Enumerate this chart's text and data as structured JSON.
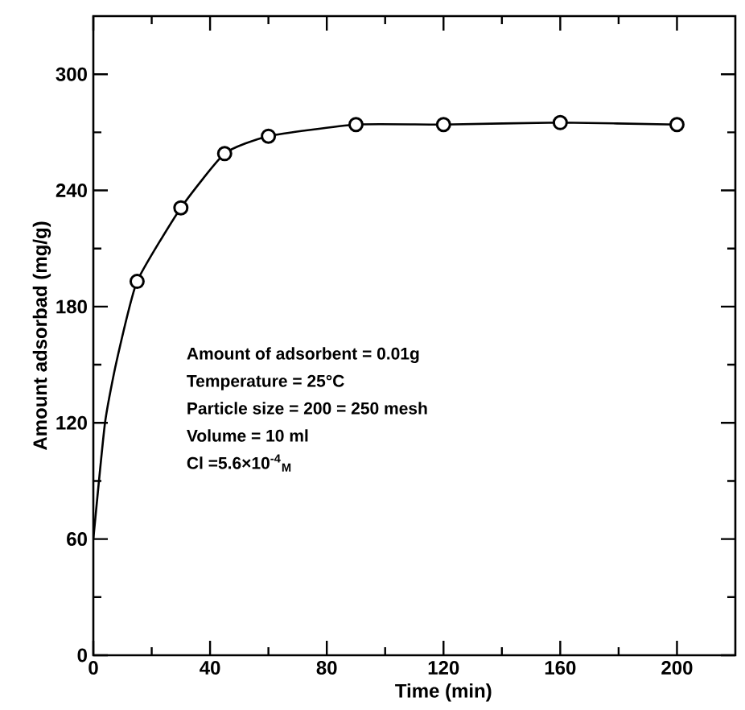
{
  "chart_data": {
    "type": "scatter",
    "xlabel": "Time (min)",
    "ylabel": "Amount adsorbad (mg/g)",
    "xlim": [
      0,
      220
    ],
    "xticks": [
      0,
      40,
      80,
      120,
      160,
      200
    ],
    "ylim": [
      0,
      330
    ],
    "yticks": [
      0,
      60,
      120,
      180,
      240,
      300
    ],
    "series": [
      {
        "type": "line",
        "color": "#000000",
        "marker": "none",
        "x": [
          0,
          4,
          8,
          15,
          30,
          45,
          60,
          90,
          120,
          160,
          200
        ],
        "values": [
          60,
          120,
          152,
          193,
          231,
          259,
          268,
          274,
          274,
          275,
          274
        ]
      },
      {
        "color": "#000000",
        "marker": "circle",
        "x": [
          15,
          30,
          45,
          60,
          90,
          120,
          160,
          200
        ],
        "values": [
          193,
          231,
          259,
          268,
          274,
          274,
          275,
          274
        ]
      }
    ],
    "annotations": [
      "Amount of adsorbent = 0.01g",
      "Temperature = 25°C",
      "Particle size = 200 = 250 mesh",
      "Volume = 10 ml",
      "Cl =5.6×10$^{-4}$$_{M}$"
    ],
    "grid": false
  }
}
